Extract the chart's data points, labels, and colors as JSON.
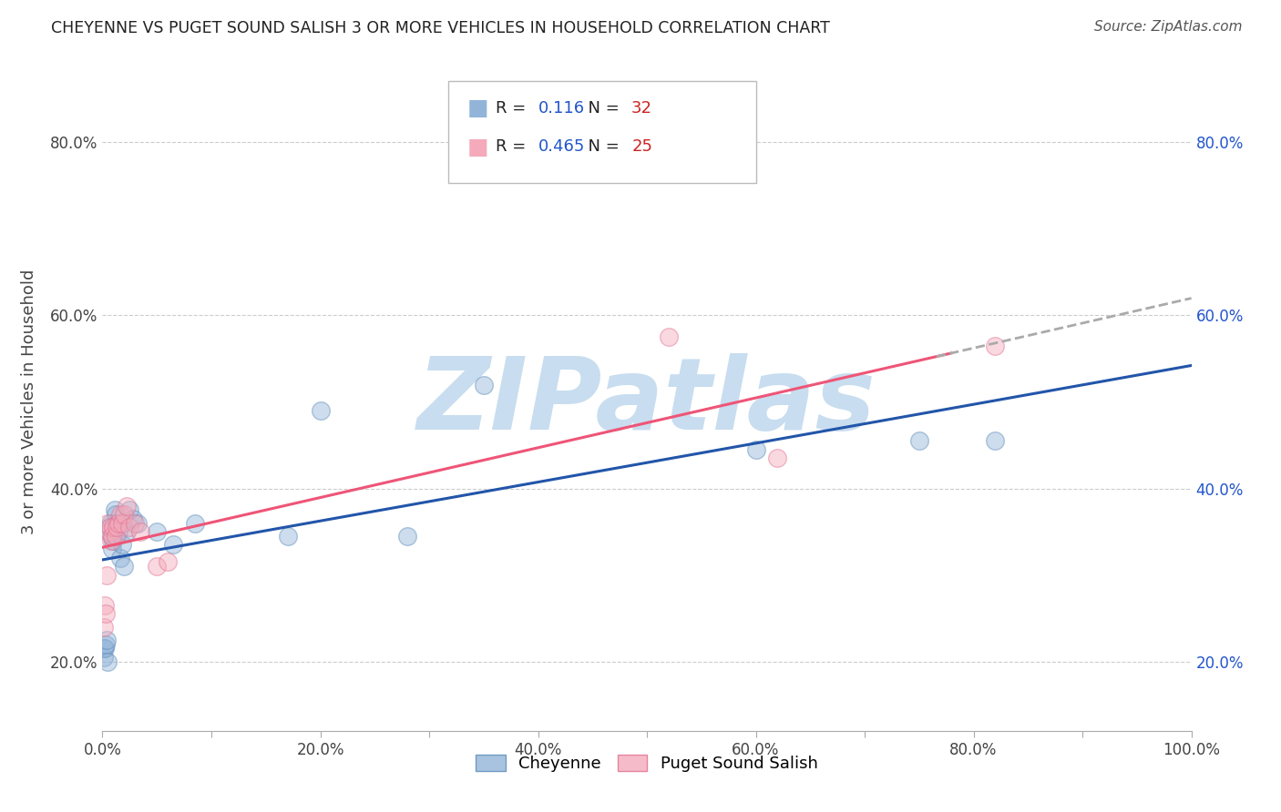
{
  "title": "CHEYENNE VS PUGET SOUND SALISH 3 OR MORE VEHICLES IN HOUSEHOLD CORRELATION CHART",
  "source": "Source: ZipAtlas.com",
  "ylabel": "3 or more Vehicles in Household",
  "xlabel": "",
  "legend_label1": "Cheyenne",
  "legend_label2": "Puget Sound Salish",
  "r1": 0.116,
  "n1": 32,
  "r2": 0.465,
  "n2": 25,
  "cheyenne_x": [
    0.001,
    0.001,
    0.002,
    0.003,
    0.004,
    0.005,
    0.006,
    0.007,
    0.008,
    0.009,
    0.01,
    0.011,
    0.012,
    0.013,
    0.015,
    0.016,
    0.018,
    0.02,
    0.022,
    0.025,
    0.028,
    0.032,
    0.05,
    0.065,
    0.085,
    0.17,
    0.2,
    0.28,
    0.35,
    0.6,
    0.75,
    0.82
  ],
  "cheyenne_y": [
    0.205,
    0.215,
    0.215,
    0.22,
    0.225,
    0.2,
    0.355,
    0.36,
    0.345,
    0.33,
    0.34,
    0.375,
    0.37,
    0.36,
    0.35,
    0.32,
    0.335,
    0.31,
    0.35,
    0.375,
    0.365,
    0.36,
    0.35,
    0.335,
    0.36,
    0.345,
    0.49,
    0.345,
    0.52,
    0.445,
    0.455,
    0.455
  ],
  "salish_x": [
    0.001,
    0.002,
    0.003,
    0.004,
    0.005,
    0.006,
    0.007,
    0.008,
    0.009,
    0.01,
    0.012,
    0.013,
    0.015,
    0.016,
    0.018,
    0.02,
    0.022,
    0.025,
    0.03,
    0.035,
    0.05,
    0.06,
    0.52,
    0.62,
    0.82
  ],
  "salish_y": [
    0.24,
    0.265,
    0.255,
    0.3,
    0.36,
    0.35,
    0.355,
    0.34,
    0.345,
    0.355,
    0.345,
    0.355,
    0.36,
    0.37,
    0.36,
    0.37,
    0.38,
    0.355,
    0.36,
    0.35,
    0.31,
    0.315,
    0.575,
    0.435,
    0.565
  ],
  "blue_color": "#92B4D8",
  "blue_edge_color": "#5A8AB8",
  "pink_color": "#F4AABB",
  "pink_edge_color": "#E07090",
  "blue_line_color": "#2255AA",
  "pink_line_color": "#EE5577",
  "dashed_line_color": "#AAAAAA",
  "title_color": "#222222",
  "axis_label_color": "#444444",
  "source_color": "#555555",
  "legend_r_color": "#222222",
  "legend_val_color_blue": "#2255CC",
  "legend_val_color_red": "#CC2222",
  "grid_color": "#CCCCCC",
  "background_color": "#FFFFFF",
  "watermark_text": "ZIPatlas",
  "watermark_color": "#C8DDEF",
  "xlim": [
    0.0,
    1.0
  ],
  "ylim": [
    0.12,
    0.88
  ],
  "xticks": [
    0.0,
    0.1,
    0.2,
    0.3,
    0.4,
    0.5,
    0.6,
    0.7,
    0.8,
    0.9,
    1.0
  ],
  "xtick_labels": [
    "0.0%",
    "",
    "20.0%",
    "",
    "40.0%",
    "",
    "60.0%",
    "",
    "80.0%",
    "",
    "100.0%"
  ],
  "yticks": [
    0.2,
    0.4,
    0.6,
    0.8
  ],
  "ytick_labels": [
    "20.0%",
    "40.0%",
    "60.0%",
    "80.0%"
  ],
  "right_ytick_labels": [
    "20.0%",
    "40.0%",
    "60.0%",
    "80.0%"
  ],
  "marker_size": 200,
  "marker_alpha": 0.45,
  "marker_linewidth": 1.0
}
